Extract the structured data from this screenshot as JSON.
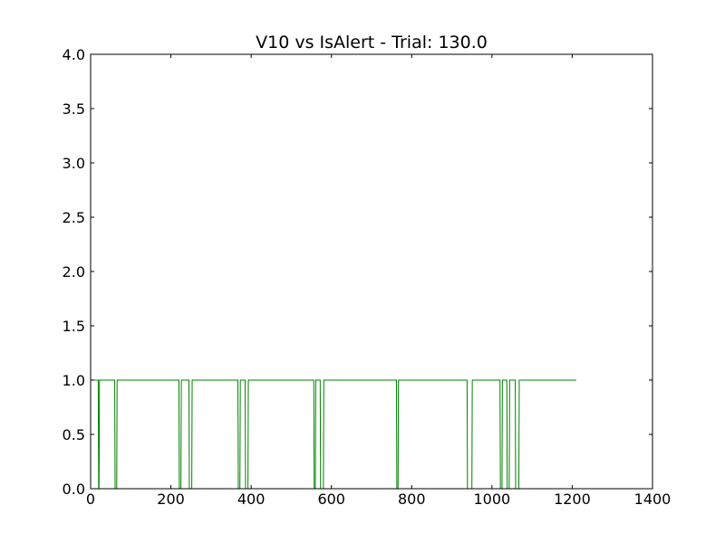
{
  "chart_data": {
    "type": "line",
    "title": "V10 vs IsAlert - Trial: 130.0",
    "xlabel": "",
    "ylabel": "",
    "xlim": [
      0,
      1400
    ],
    "ylim": [
      0,
      4.0
    ],
    "xticks": [
      0,
      200,
      400,
      600,
      800,
      1000,
      1200,
      1400
    ],
    "xtick_labels": [
      "0",
      "200",
      "400",
      "600",
      "800",
      "1000",
      "1200",
      "1400"
    ],
    "yticks": [
      0,
      0.5,
      1.0,
      1.5,
      2.0,
      2.5,
      3.0,
      3.5,
      4.0
    ],
    "ytick_labels": [
      "0.0",
      "0.5",
      "1.0",
      "1.5",
      "2.0",
      "2.5",
      "3.0",
      "3.5",
      "4.0"
    ],
    "grid": false,
    "line_style": "step",
    "series": [
      {
        "color": "#008000",
        "x": [
          0,
          19,
          20,
          21,
          22,
          60,
          61,
          65,
          66,
          220,
          221,
          225,
          226,
          245,
          246,
          252,
          253,
          367,
          368,
          372,
          373,
          385,
          386,
          392,
          393,
          556,
          557,
          560,
          561,
          572,
          573,
          580,
          581,
          762,
          763,
          766,
          767,
          938,
          939,
          950,
          951,
          1020,
          1021,
          1025,
          1026,
          1037,
          1038,
          1043,
          1044,
          1058,
          1059,
          1067,
          1068,
          1210
        ],
        "y": [
          1,
          1,
          0,
          0,
          1,
          1,
          0,
          0,
          1,
          1,
          0,
          0,
          1,
          1,
          0,
          0,
          1,
          1,
          0,
          0,
          1,
          1,
          0,
          0,
          1,
          1,
          0,
          0,
          1,
          1,
          0,
          0,
          1,
          1,
          0,
          0,
          1,
          1,
          0,
          0,
          1,
          1,
          0,
          0,
          1,
          1,
          0,
          0,
          1,
          1,
          0,
          0,
          1,
          1
        ]
      }
    ]
  }
}
